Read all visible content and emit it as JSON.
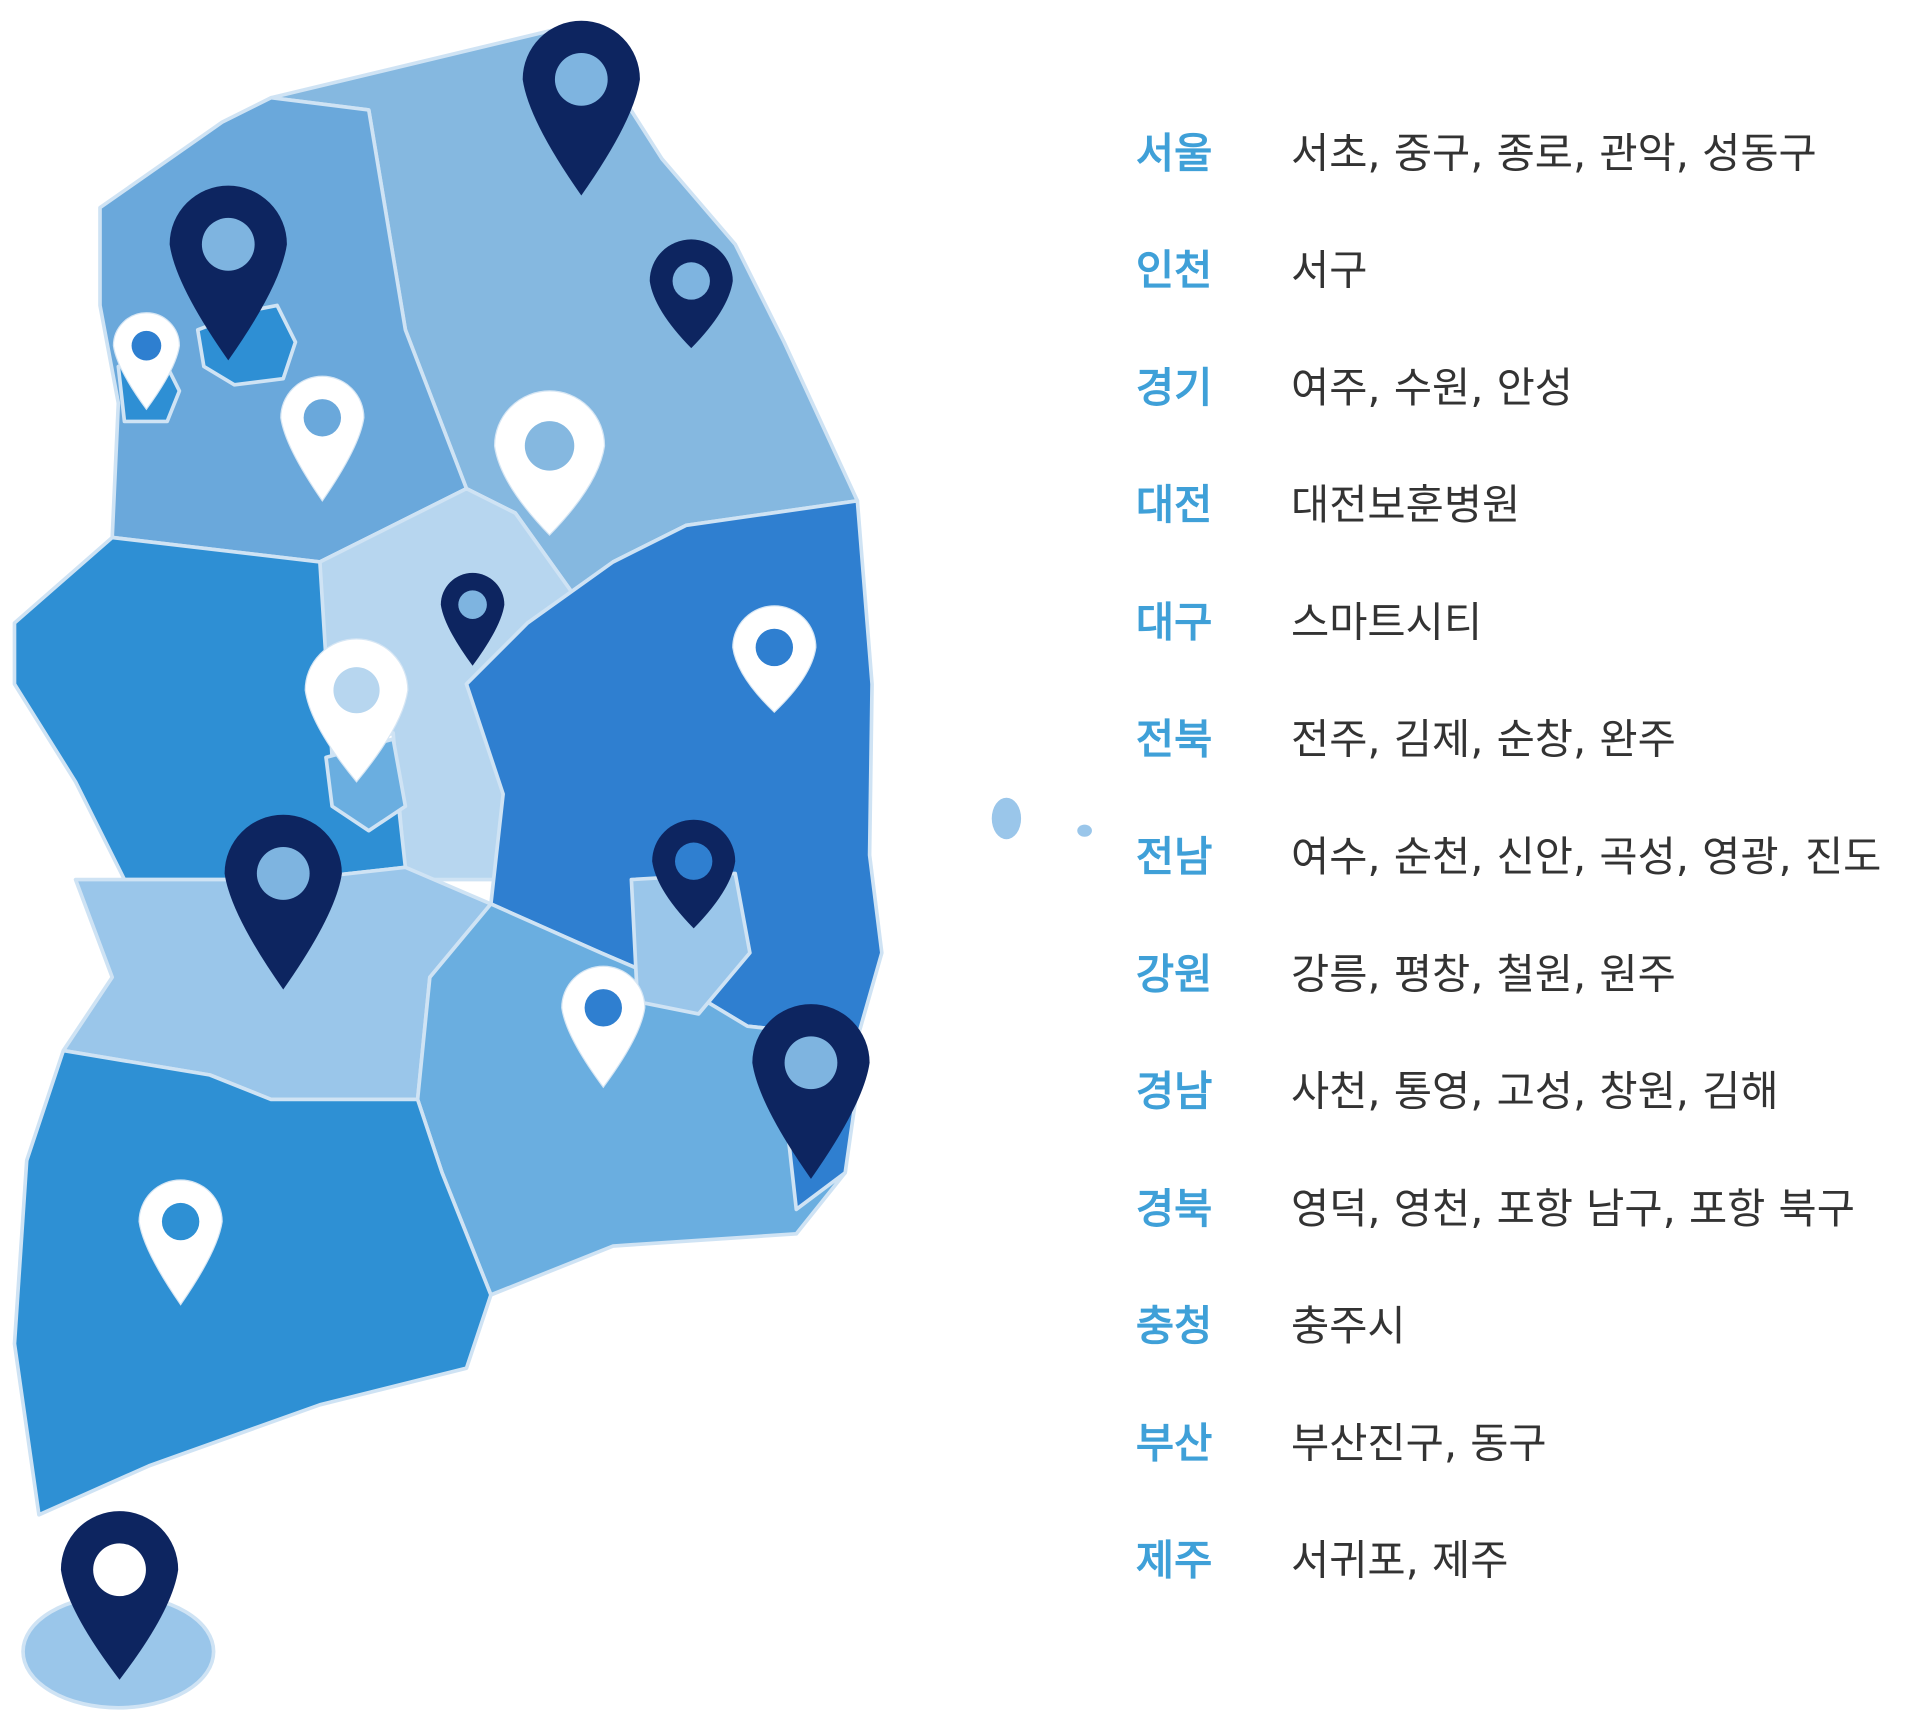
{
  "regions": [
    {
      "name": "서울",
      "places": "서초, 중구, 종로, 관악, 성동구"
    },
    {
      "name": "인천",
      "places": "서구"
    },
    {
      "name": "경기",
      "places": "여주, 수원, 안성"
    },
    {
      "name": "대전",
      "places": "대전보훈병원"
    },
    {
      "name": "대구",
      "places": "스마트시티"
    },
    {
      "name": "전북",
      "places": "전주, 김제, 순창, 완주"
    },
    {
      "name": "전남",
      "places": "여수, 순천, 신안, 곡성, 영광, 진도"
    },
    {
      "name": "강원",
      "places": "강릉, 평창, 철원, 원주"
    },
    {
      "name": "경남",
      "places": "사천, 통영, 고성, 창원, 김해"
    },
    {
      "name": "경북",
      "places": "영덕, 영천, 포항 남구, 포항 북구"
    },
    {
      "name": "충청",
      "places": "충주시"
    },
    {
      "name": "부산",
      "places": "부산진구, 동구"
    },
    {
      "name": "제주",
      "places": "서귀포, 제주"
    }
  ]
}
